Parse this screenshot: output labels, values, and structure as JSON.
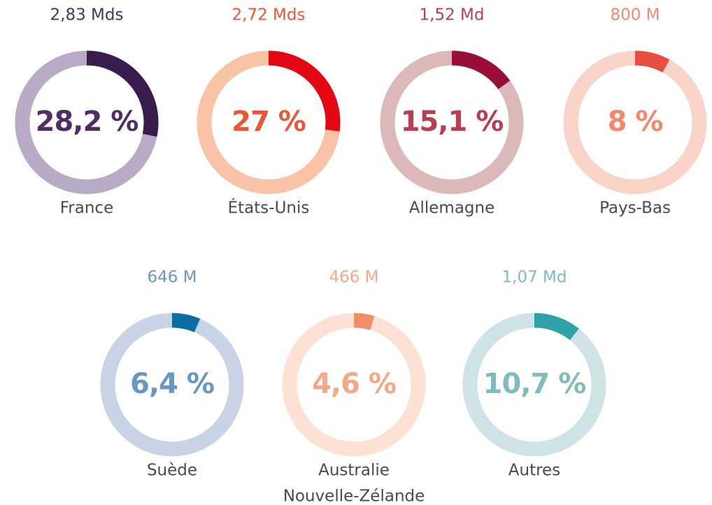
{
  "chart_data": [
    {
      "type": "donut",
      "label_lines": [
        "France"
      ],
      "values": [
        28.2
      ],
      "value_labels": [
        "28,2 %"
      ],
      "amount": {
        "value": 2830000000,
        "label": "2,83 Mds"
      },
      "color": "#3a1d4f",
      "track_color": "#b9abc5",
      "text_color": "#4f2f62"
    },
    {
      "type": "donut",
      "label_lines": [
        "États-Unis"
      ],
      "values": [
        27
      ],
      "value_labels": [
        "27 %"
      ],
      "amount": {
        "value": 2720000000,
        "label": "2,72 Mds"
      },
      "color": "#e30613",
      "track_color": "#f9c3a8",
      "text_color": "#e8573a"
    },
    {
      "type": "donut",
      "label_lines": [
        "Allemagne"
      ],
      "values": [
        15.1
      ],
      "value_labels": [
        "15,1 %"
      ],
      "amount": {
        "value": 1520000000,
        "label": "1,52 Md"
      },
      "color": "#9a0f38",
      "track_color": "#dcb8b9",
      "text_color": "#b63f52"
    },
    {
      "type": "donut",
      "label_lines": [
        "Pays-Bas"
      ],
      "values": [
        8
      ],
      "value_labels": [
        "8 %"
      ],
      "amount": {
        "value": 800000000,
        "label": "800 M"
      },
      "color": "#e84e40",
      "track_color": "#fad4c9",
      "text_color": "#ef8a70"
    },
    {
      "type": "donut",
      "label_lines": [
        "Suède"
      ],
      "values": [
        6.4
      ],
      "value_labels": [
        "6,4 %"
      ],
      "amount": {
        "value": 646000000,
        "label": "646 M"
      },
      "color": "#0a6fa0",
      "track_color": "#c8d4e6",
      "text_color": "#6997c0"
    },
    {
      "type": "donut",
      "label_lines": [
        "Australie",
        "Nouvelle-Zélande"
      ],
      "values": [
        4.6
      ],
      "value_labels": [
        "4,6 %"
      ],
      "amount": {
        "value": 466000000,
        "label": "466 M"
      },
      "color": "#ee8f68",
      "track_color": "#fde1d5",
      "text_color": "#f2a988"
    },
    {
      "type": "donut",
      "label_lines": [
        "Autres"
      ],
      "values": [
        10.7
      ],
      "value_labels": [
        "10,7 %"
      ],
      "amount": {
        "value": 1070000000,
        "label": "1,07 Md"
      },
      "color": "#2fa2a8",
      "track_color": "#cfe3e6",
      "text_color": "#7fbbbf"
    }
  ]
}
